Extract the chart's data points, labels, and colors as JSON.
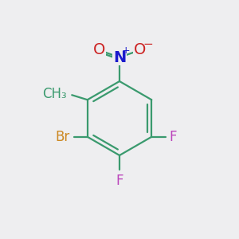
{
  "background_color": "#eeeef0",
  "ring_color": "#3a9a6e",
  "bond_width": 1.6,
  "substituents": {
    "methyl": {
      "label": "CH₃",
      "color": "#3a9a6e",
      "fontsize": 12,
      "ha": "right",
      "va": "center"
    },
    "nitro_N": {
      "label": "N",
      "color": "#1a1acc",
      "fontsize": 14,
      "ha": "center",
      "va": "center"
    },
    "nitro_O1": {
      "label": "O",
      "color": "#cc2222",
      "fontsize": 14,
      "ha": "center",
      "va": "center"
    },
    "nitro_O2": {
      "label": "O",
      "color": "#cc2222",
      "fontsize": 14,
      "ha": "center",
      "va": "center"
    },
    "nitro_plus": {
      "label": "+",
      "color": "#1a1acc",
      "fontsize": 9,
      "ha": "left",
      "va": "center"
    },
    "nitro_minus": {
      "label": "−",
      "color": "#cc2222",
      "fontsize": 11,
      "ha": "left",
      "va": "center"
    },
    "bromine": {
      "label": "Br",
      "color": "#cc8822",
      "fontsize": 12,
      "ha": "right",
      "va": "center"
    },
    "F_bottom": {
      "label": "F",
      "color": "#bb44bb",
      "fontsize": 12,
      "ha": "center",
      "va": "top"
    },
    "F_right": {
      "label": "F",
      "color": "#bb44bb",
      "fontsize": 12,
      "ha": "left",
      "va": "center"
    }
  }
}
